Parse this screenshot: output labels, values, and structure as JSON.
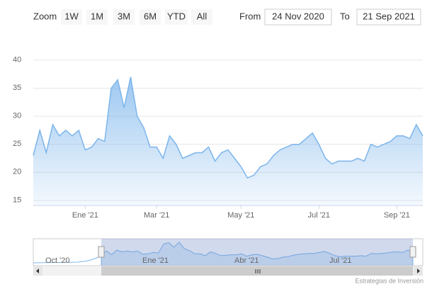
{
  "range_selector": {
    "zoom_label": "Zoom",
    "buttons": [
      "1W",
      "1M",
      "3M",
      "6M",
      "YTD",
      "All"
    ],
    "from_label": "From",
    "from": "24 Nov 2020",
    "to_label": "To",
    "to": "21 Sep 2021"
  },
  "navigator": {
    "labels": [
      "Oct '20",
      "Ene '21",
      "Abr '21",
      "Jul '21"
    ]
  },
  "credits": "Estrategias de Inversión",
  "chart_data": {
    "type": "area",
    "categories": [
      null,
      null,
      null,
      null,
      null,
      null,
      null,
      null,
      "Ene '21",
      null,
      null,
      null,
      null,
      null,
      null,
      null,
      null,
      null,
      null,
      "Mar '21",
      null,
      null,
      null,
      null,
      null,
      null,
      null,
      null,
      null,
      null,
      null,
      null,
      "May '21",
      null,
      null,
      null,
      null,
      null,
      null,
      null,
      null,
      null,
      null,
      null,
      "Jul '21",
      null,
      null,
      null,
      null,
      null,
      null,
      null,
      null,
      null,
      null,
      null,
      "Sep '21",
      null,
      null,
      null,
      null
    ],
    "values": [
      23,
      27.5,
      23.5,
      28.5,
      26.5,
      27.5,
      26.5,
      27.5,
      24,
      24.5,
      26,
      25.5,
      35,
      36.5,
      31.5,
      37,
      30,
      28,
      24.5,
      24.5,
      22.5,
      26.5,
      25,
      22.5,
      23,
      23.5,
      23.5,
      24.5,
      22,
      23.5,
      24,
      22.5,
      21,
      19,
      19.5,
      21,
      21.5,
      23,
      24,
      24.5,
      25,
      25,
      26,
      27,
      25,
      22.5,
      21.5,
      22,
      22,
      22,
      22.5,
      22,
      25,
      24.5,
      25,
      25.5,
      26.5,
      26.5,
      26,
      28.5,
      26.5
    ],
    "color": "#7cb5ec",
    "ylim": [
      14.1,
      44.4
    ],
    "yticks": [
      15,
      20,
      25,
      30,
      35,
      40
    ],
    "grid": true
  }
}
